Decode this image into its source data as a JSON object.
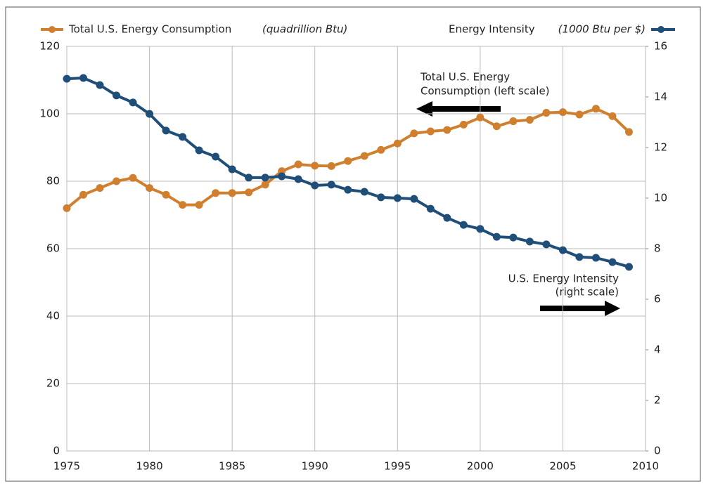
{
  "chart_data": {
    "type": "line",
    "x": [
      1975,
      1976,
      1977,
      1978,
      1979,
      1980,
      1981,
      1982,
      1983,
      1984,
      1985,
      1986,
      1987,
      1988,
      1989,
      1990,
      1991,
      1992,
      1993,
      1994,
      1995,
      1996,
      1997,
      1998,
      1999,
      2000,
      2001,
      2002,
      2003,
      2004,
      2005,
      2006,
      2007,
      2008,
      2009
    ],
    "series": [
      {
        "name": "Total U.S. Energy Consumption",
        "unit": "(quadrillion Btu)",
        "color": "#d07f2f",
        "axis": "y",
        "values": [
          72,
          76,
          78,
          80,
          81,
          78,
          76,
          73,
          73,
          76.5,
          76.5,
          76.7,
          79,
          83,
          85,
          84.6,
          84.5,
          86,
          87.5,
          89.3,
          91.2,
          94.2,
          94.8,
          95.2,
          96.8,
          98.9,
          96.3,
          97.8,
          98.2,
          100.3,
          100.5,
          99.8,
          101.5,
          99.3,
          94.6
        ]
      },
      {
        "name": "Energy Intensity",
        "unit": "(1000 Btu per $)",
        "color": "#1f4e79",
        "axis": "y2",
        "values": [
          14.72,
          14.75,
          14.47,
          14.06,
          13.78,
          13.33,
          12.67,
          12.42,
          11.89,
          11.64,
          11.14,
          10.81,
          10.81,
          10.86,
          10.75,
          10.5,
          10.53,
          10.33,
          10.25,
          10.03,
          10.0,
          9.97,
          9.58,
          9.22,
          8.94,
          8.78,
          8.47,
          8.44,
          8.28,
          8.17,
          7.94,
          7.67,
          7.64,
          7.47,
          7.28
        ]
      }
    ],
    "xlim": [
      1975,
      2010
    ],
    "xticks": [
      1975,
      1980,
      1985,
      1990,
      1995,
      2000,
      2005,
      2010
    ],
    "ylim": [
      0,
      120
    ],
    "yticks": [
      0,
      20,
      40,
      60,
      80,
      100,
      120
    ],
    "y2lim": [
      0,
      16
    ],
    "y2ticks": [
      0,
      2,
      4,
      6,
      8,
      10,
      12,
      14,
      16
    ],
    "grid": true,
    "annotations": [
      {
        "lines": [
          "Total U.S. Energy",
          "Consumption (left scale)"
        ]
      },
      {
        "lines": [
          "U.S. Energy Intensity",
          "(right scale)"
        ]
      }
    ]
  }
}
